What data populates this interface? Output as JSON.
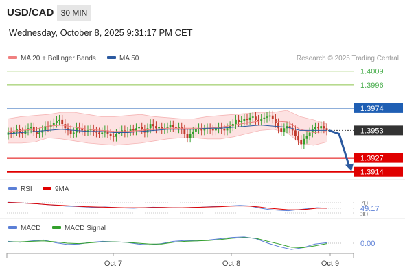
{
  "header": {
    "symbol": "USD/CAD",
    "interval": "30 MIN",
    "datetime": "Wednesday, October 8, 2025 9:31:17 PM CET",
    "credit": "Research © 2025 Trading Central"
  },
  "legend": {
    "ma20": "MA 20 + Bollinger Bands",
    "ma50": "MA 50",
    "rsi": "RSI",
    "rsi_ma": "9MA",
    "macd": "MACD",
    "macd_signal": "MACD Signal"
  },
  "colors": {
    "candle_up": "#33a02c",
    "candle_down": "#c0392b",
    "ma20": "#f08080",
    "ma50": "#2c5aa0",
    "bollinger_fill": "#fde2e2",
    "resistance": "#8bc34a",
    "pivot": "#1f5fb4",
    "support": "#e00000",
    "last_price": "#333333",
    "rsi": "#5b7fd6",
    "rsi_ma": "#e00000",
    "macd": "#5b7fd6",
    "macd_signal": "#33a02c"
  },
  "chart_data": [
    {
      "type": "candlestick",
      "x_tick_labels": [
        "Oct 7",
        "Oct 8",
        "Oct 9"
      ],
      "ylim": [
        1.3908,
        1.4014
      ],
      "levels": [
        {
          "label": "1.4009",
          "value": 1.4009,
          "kind": "resistance"
        },
        {
          "label": "1.3996",
          "value": 1.3996,
          "kind": "resistance"
        },
        {
          "label": "1.3974",
          "value": 1.3974,
          "kind": "pivot"
        },
        {
          "label": "1.3927",
          "value": 1.3927,
          "kind": "support"
        },
        {
          "label": "1.3914",
          "value": 1.3914,
          "kind": "support"
        }
      ],
      "last_price": {
        "label": "1.3953",
        "value": 1.3953
      },
      "forecast_arrow": {
        "from": 1.3953,
        "to": 1.3914,
        "direction": "down"
      },
      "closes": [
        1.3951,
        1.395,
        1.3952,
        1.3954,
        1.3951,
        1.395,
        1.3953,
        1.3955,
        1.3956,
        1.3952,
        1.395,
        1.3951,
        1.3953,
        1.3957,
        1.3956,
        1.3958,
        1.396,
        1.3962,
        1.3963,
        1.3959,
        1.3955,
        1.3953,
        1.395,
        1.3951,
        1.3956,
        1.3955,
        1.3953,
        1.3952,
        1.3953,
        1.3954,
        1.3952,
        1.3951,
        1.395,
        1.3951,
        1.3953,
        1.395,
        1.3948,
        1.3947,
        1.395,
        1.3952,
        1.3953,
        1.3951,
        1.3952,
        1.3954,
        1.3953,
        1.3955,
        1.3956,
        1.3954,
        1.3951,
        1.3955,
        1.3959,
        1.3957,
        1.3955,
        1.3956,
        1.3954,
        1.3955,
        1.3956,
        1.3958,
        1.3956,
        1.3955,
        1.3956,
        1.3954,
        1.395,
        1.3946,
        1.395,
        1.3952,
        1.3954,
        1.3955,
        1.3953,
        1.3954,
        1.3955,
        1.3954,
        1.3953,
        1.3955,
        1.3956,
        1.3954,
        1.3953,
        1.3955,
        1.3957,
        1.3959,
        1.3963,
        1.3961,
        1.3962,
        1.3964,
        1.3963,
        1.3965,
        1.3966,
        1.3963,
        1.3962,
        1.3964,
        1.3965,
        1.3966,
        1.3967,
        1.3964,
        1.396,
        1.3955,
        1.3952,
        1.3955,
        1.3957,
        1.3955,
        1.3953,
        1.3948,
        1.3944,
        1.394,
        1.3945,
        1.3948,
        1.3951,
        1.3954,
        1.3956,
        1.3955,
        1.3957,
        1.3955,
        1.3953
      ],
      "bb_upper": [
        1.3964,
        1.3966,
        1.3967,
        1.3968,
        1.397,
        1.397,
        1.3968,
        1.3966,
        1.3966,
        1.3967,
        1.3968,
        1.3966,
        1.3965,
        1.3964,
        1.3964,
        1.3966,
        1.3967,
        1.3968,
        1.3969,
        1.397,
        1.397,
        1.3972,
        1.3966,
        1.3963,
        1.3959
      ],
      "ma20": [
        1.3952,
        1.3953,
        1.3954,
        1.3957,
        1.3958,
        1.3956,
        1.3954,
        1.3953,
        1.3952,
        1.3952,
        1.3953,
        1.3954,
        1.3955,
        1.3955,
        1.3955,
        1.3955,
        1.3956,
        1.3958,
        1.396,
        1.3962,
        1.3962,
        1.3961,
        1.3954,
        1.3951,
        1.3952
      ],
      "bb_lower": [
        1.3941,
        1.3941,
        1.3942,
        1.3946,
        1.3945,
        1.3943,
        1.3941,
        1.394,
        1.3939,
        1.394,
        1.3941,
        1.3943,
        1.3945,
        1.3946,
        1.3946,
        1.3945,
        1.3945,
        1.3947,
        1.395,
        1.3953,
        1.3954,
        1.3951,
        1.3941,
        1.3939,
        1.3942
      ],
      "ma50": [
        1.395,
        1.3951,
        1.3952,
        1.3953,
        1.3954,
        1.3953,
        1.3952,
        1.3952,
        1.3951,
        1.3951,
        1.3952,
        1.3953,
        1.3954,
        1.3954,
        1.3954,
        1.3955,
        1.3955,
        1.3956,
        1.3957,
        1.3958,
        1.3957,
        1.3956,
        1.3953,
        1.3953,
        1.3953
      ]
    },
    {
      "type": "line",
      "name": "RSI",
      "ylim": [
        30,
        70
      ],
      "tick_labels": [
        "70",
        "30"
      ],
      "last_value_label": "49.17",
      "rsi": [
        72,
        70,
        68,
        66,
        63,
        60,
        57,
        56,
        54,
        52,
        54,
        52,
        50,
        49,
        51,
        53,
        52,
        51,
        50,
        52,
        53,
        55,
        57,
        58,
        60,
        58,
        50,
        44,
        41,
        39,
        43,
        47,
        51,
        49
      ],
      "rsi_ma": [
        71,
        70,
        68,
        66,
        63,
        61,
        59,
        57,
        55,
        54,
        53,
        52,
        51,
        51,
        51,
        52,
        52,
        51,
        51,
        52,
        53,
        54,
        55,
        57,
        58,
        57,
        54,
        49,
        46,
        43,
        43,
        45,
        49,
        49
      ]
    },
    {
      "type": "line",
      "name": "MACD",
      "last_value_label": "0.00",
      "macd": [
        0.2,
        0.1,
        0.25,
        0.35,
        0.05,
        -0.15,
        -0.1,
        0.1,
        0.2,
        0.15,
        0.1,
        -0.1,
        -0.2,
        -0.05,
        0.2,
        0.3,
        0.25,
        0.35,
        0.5,
        0.65,
        0.7,
        0.5,
        0.0,
        -0.4,
        -0.7,
        -0.5,
        -0.1,
        0.05
      ],
      "macd_signal": [
        0.15,
        0.15,
        0.2,
        0.25,
        0.15,
        0.0,
        -0.05,
        0.05,
        0.15,
        0.15,
        0.1,
        0.0,
        -0.1,
        -0.1,
        0.1,
        0.2,
        0.25,
        0.3,
        0.4,
        0.55,
        0.62,
        0.55,
        0.2,
        -0.1,
        -0.45,
        -0.5,
        -0.3,
        -0.05
      ]
    }
  ]
}
